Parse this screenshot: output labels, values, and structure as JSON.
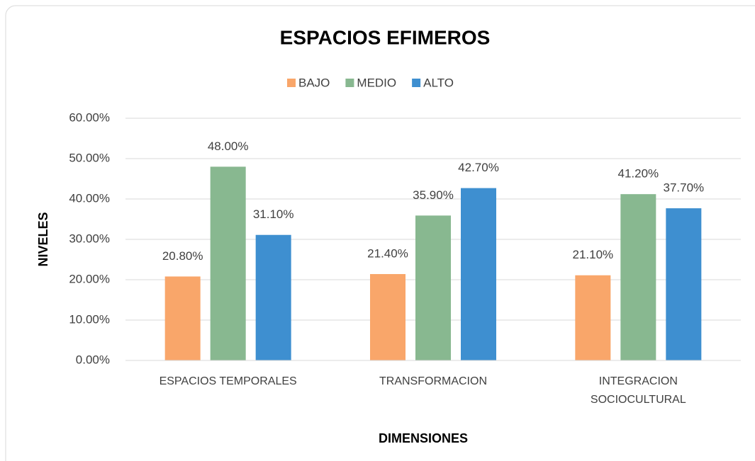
{
  "chart_data": {
    "type": "bar",
    "title": "ESPACIOS EFIMEROS",
    "x_label": "DIMENSIONES",
    "y_label": "NIVELES",
    "categories": [
      "ESPACIOS TEMPORALES",
      "TRANSFORMACION",
      "INTEGRACION SOCIOCULTURAL"
    ],
    "series": [
      {
        "name": "BAJO",
        "color": "#f9a66a",
        "values": [
          20.8,
          21.4,
          21.1
        ],
        "value_labels": [
          "20.80%",
          "21.40%",
          "21.10%"
        ]
      },
      {
        "name": "MEDIO",
        "color": "#88b890",
        "values": [
          48.0,
          35.9,
          41.2
        ],
        "value_labels": [
          "48.00%",
          "35.90%",
          "41.20%"
        ]
      },
      {
        "name": "ALTO",
        "color": "#3e8fd0",
        "values": [
          31.1,
          42.7,
          37.7
        ],
        "value_labels": [
          "31.10%",
          "42.70%",
          "37.70%"
        ]
      }
    ],
    "ylim": [
      0,
      60
    ],
    "yticks": [
      {
        "value": 0,
        "label": "0.00%"
      },
      {
        "value": 10,
        "label": "10.00%"
      },
      {
        "value": 20,
        "label": "20.00%"
      },
      {
        "value": 30,
        "label": "30.00%"
      },
      {
        "value": 40,
        "label": "40.00%"
      },
      {
        "value": 50,
        "label": "50.00%"
      },
      {
        "value": 60,
        "label": "60.00%"
      }
    ],
    "grid": true,
    "legend": "top"
  }
}
